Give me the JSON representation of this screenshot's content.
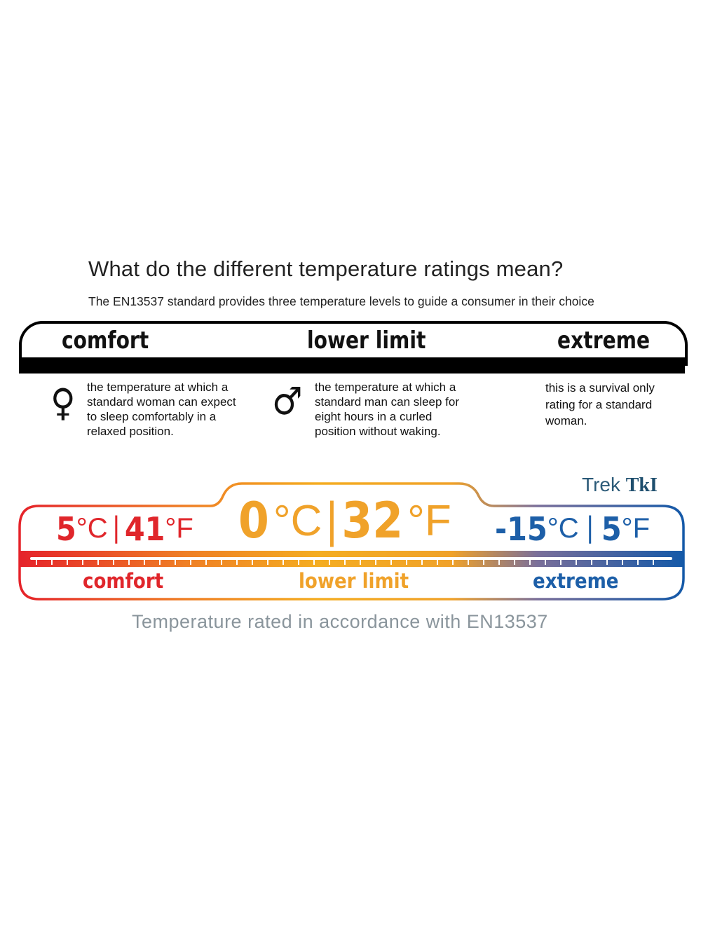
{
  "header": {
    "title": "What do the different temperature ratings mean?",
    "subtitle": "The EN13537 standard provides three temperature levels to guide a consumer in their choice"
  },
  "levels": [
    {
      "label": "comfort",
      "icon": "female-symbol-icon",
      "symbol": "♀",
      "description": [
        "the temperature at which a",
        "standard woman can expect",
        "to sleep comfortably in a",
        "relaxed position."
      ]
    },
    {
      "label": "lower limit",
      "icon": "male-symbol-icon",
      "symbol": "♂",
      "description": [
        "the temperature at which a",
        "standard man can sleep for",
        "eight hours in a curled",
        "position without waking."
      ]
    },
    {
      "label": "extreme",
      "description": [
        "this is a survival only",
        "rating for a standard",
        "woman."
      ]
    }
  ],
  "brand": {
    "name": "Trek",
    "mark": "TkI"
  },
  "ratings": [
    {
      "label": "comfort",
      "celsius": "5",
      "fahrenheit": "41",
      "c_unit": "°C",
      "f_unit": "°F",
      "color": "#e0262b"
    },
    {
      "label": "lower limit",
      "celsius": "0",
      "fahrenheit": "32",
      "c_unit": "°C",
      "f_unit": "°F",
      "color": "#f0a22a"
    },
    {
      "label": "extreme",
      "celsius": "-15",
      "fahrenheit": "5",
      "c_unit": "°C",
      "f_unit": "°F",
      "color": "#1d5fa8"
    }
  ],
  "separator": "|",
  "footer": "Temperature rated in accordance with EN13537"
}
